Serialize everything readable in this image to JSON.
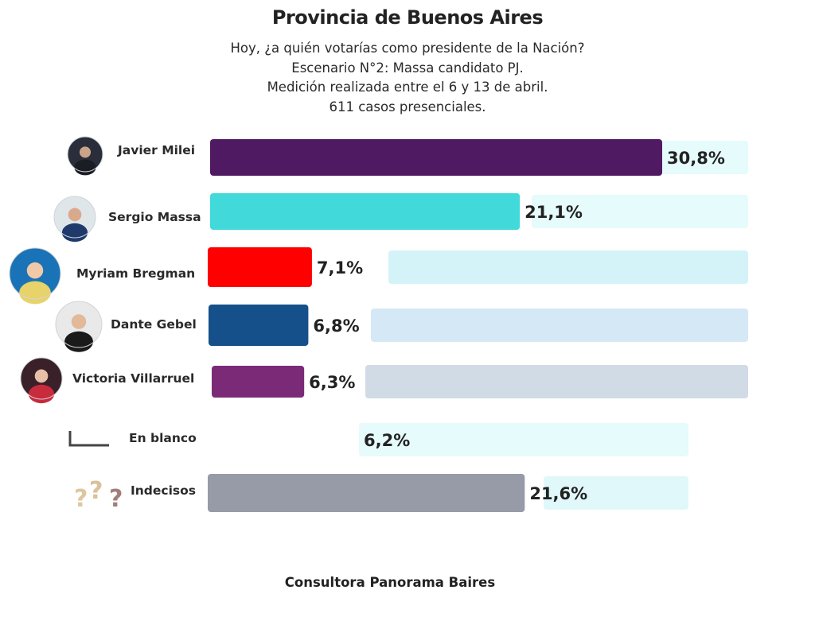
{
  "chart_data": {
    "type": "bar",
    "orientation": "horizontal",
    "title": "Provincia de Buenos Aires",
    "subtitle": [
      "Hoy, ¿a quién votarías como presidente de la Nación?",
      "Escenario N°2: Massa candidato PJ.",
      "Medición realizada entre el 6 y 13 de abril.",
      "611 casos presenciales."
    ],
    "categories": [
      "Javier Milei",
      "Sergio Massa",
      "Myriam Bregman",
      "Dante Gebel",
      "Victoria Villarruel",
      "En blanco",
      "Indecisos"
    ],
    "values": [
      30.8,
      21.1,
      7.1,
      6.8,
      6.3,
      6.2,
      21.6
    ],
    "value_labels": [
      "30,8%",
      "21,1%",
      "7,1%",
      "6,8%",
      "6,3%",
      "6,2%",
      "21,6%"
    ],
    "colors": [
      "#501a63",
      "#41d9d9",
      "#ff0000",
      "#15508a",
      "#7b2a78",
      "#eafbfb",
      "#979ba8"
    ],
    "track_colors": [
      "#e6fbfb",
      "#e6fbfb",
      "#d4f3f8",
      "#d4e8f5",
      "#d1dbe6",
      "#e6fbfb",
      "#e0f8f9"
    ],
    "icons": [
      "avatar-javier-milei",
      "avatar-sergio-massa",
      "avatar-myriam-bregman",
      "avatar-dante-gebel",
      "avatar-victoria-villarruel",
      "blank-ballot-icon",
      "question-marks-icon"
    ],
    "source": "Consultora Panorama Baires"
  }
}
